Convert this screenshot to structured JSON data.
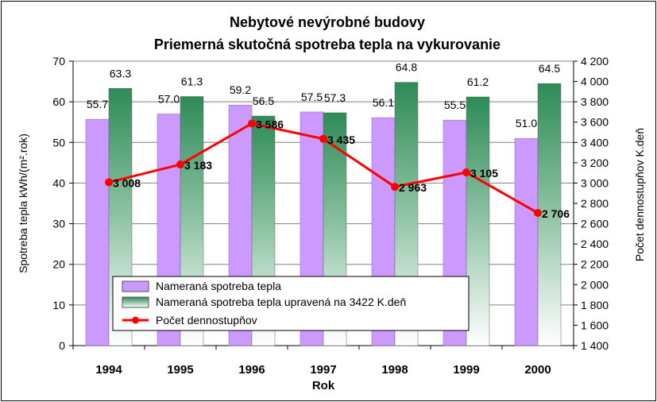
{
  "chart_data": {
    "type": "bar",
    "title": "Nebytové nevýrobné budovy",
    "subtitle": "Priemerná skutočná spotreba tepla na vykurovanie",
    "xlabel": "Rok",
    "ylabel": "Spotreba tepla  kWh/(m².rok)",
    "y2label": "Počet dennostupňov  K.deň",
    "categories": [
      "1994",
      "1995",
      "1996",
      "1997",
      "1998",
      "1999",
      "2000"
    ],
    "ylim": [
      0,
      70
    ],
    "yticks": [
      0,
      10,
      20,
      30,
      40,
      50,
      60,
      70
    ],
    "y2lim": [
      1400,
      4200
    ],
    "y2ticks": [
      "1 400",
      "1 600",
      "1 800",
      "2 000",
      "2 200",
      "2 400",
      "2 600",
      "2 800",
      "3 000",
      "3 200",
      "3 400",
      "3 600",
      "3 800",
      "4 000",
      "4 200"
    ],
    "series": [
      {
        "name": "Nameraná spotreba tepla",
        "kind": "bar",
        "axis": "left",
        "color": "#cc99ff",
        "values": [
          55.7,
          57.0,
          59.2,
          57.5,
          56.1,
          55.5,
          51.0
        ],
        "labels": [
          "55.7",
          "57.0",
          "59.2",
          "57.5",
          "56.1",
          "55.5",
          "51.0"
        ]
      },
      {
        "name": "Nameraná spotreba tepla upravená na 3422 K.deň",
        "kind": "bar",
        "axis": "left",
        "color": "#2e8b57",
        "values": [
          63.3,
          61.3,
          56.5,
          57.3,
          64.8,
          61.2,
          64.5
        ],
        "labels": [
          "63.3",
          "61.3",
          "56.5",
          "57.3",
          "64.8",
          "61.2",
          "64.5"
        ]
      },
      {
        "name": "Počet dennostupňov",
        "kind": "line",
        "axis": "right",
        "color": "#ff0000",
        "values": [
          3008,
          3183,
          3586,
          3435,
          2963,
          3105,
          2706
        ],
        "labels": [
          "3 008",
          "3 183",
          "3 586",
          "3 435",
          "2 963",
          "3 105",
          "2 706"
        ]
      }
    ],
    "grid": true,
    "legend": "bottom-center"
  }
}
